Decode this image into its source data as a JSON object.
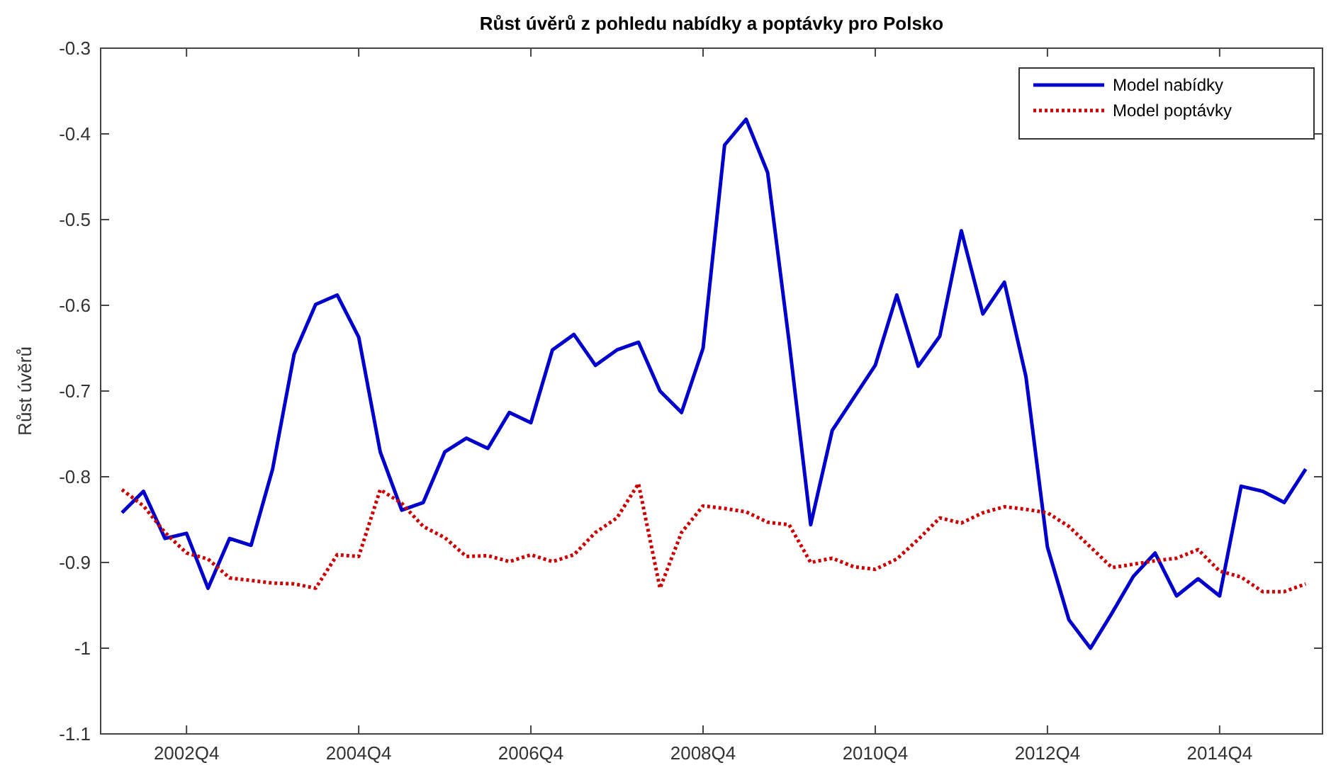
{
  "chart_data": {
    "type": "line",
    "title": "Růst úvěrů z pohledu nabídky a poptávky pro Polsko",
    "ylabel": "Růst úvěrů",
    "categories": [
      null,
      null,
      null,
      "2002Q4",
      null,
      null,
      null,
      null,
      null,
      null,
      null,
      "2004Q4",
      null,
      null,
      null,
      null,
      null,
      null,
      null,
      "2006Q4",
      null,
      null,
      null,
      null,
      null,
      null,
      null,
      "2008Q4",
      null,
      null,
      null,
      null,
      null,
      null,
      null,
      "2010Q4",
      null,
      null,
      null,
      null,
      null,
      null,
      null,
      "2012Q4",
      null,
      null,
      null,
      null,
      null,
      null,
      null,
      "2014Q4",
      null,
      null,
      null,
      null
    ],
    "series": [
      {
        "name": "Model nabídky",
        "color": "#0000cc",
        "line_style": "solid",
        "values": [
          -0.842,
          -0.817,
          -0.872,
          -0.866,
          -0.93,
          -0.872,
          -0.88,
          -0.791,
          -0.657,
          -0.599,
          -0.588,
          -0.637,
          -0.771,
          -0.839,
          -0.83,
          -0.771,
          -0.755,
          -0.767,
          -0.725,
          -0.737,
          -0.652,
          -0.634,
          -0.67,
          -0.652,
          -0.643,
          -0.7,
          -0.725,
          -0.65,
          -0.413,
          -0.383,
          -0.445,
          -0.643,
          -0.856,
          -0.746,
          -0.708,
          -0.67,
          -0.588,
          -0.671,
          -0.636,
          -0.513,
          -0.61,
          -0.573,
          -0.683,
          -0.882,
          -0.967,
          -1.0,
          -0.959,
          -0.916,
          -0.889,
          -0.939,
          -0.919,
          -0.939,
          -0.811,
          -0.817,
          -0.83,
          -0.791
        ]
      },
      {
        "name": "Model poptávky",
        "color": "#cc0000",
        "line_style": "dotted",
        "values": [
          -0.815,
          -0.834,
          -0.865,
          -0.889,
          -0.896,
          -0.918,
          -0.921,
          -0.924,
          -0.925,
          -0.93,
          -0.891,
          -0.893,
          -0.815,
          -0.831,
          -0.858,
          -0.871,
          -0.893,
          -0.892,
          -0.899,
          -0.891,
          -0.899,
          -0.891,
          -0.865,
          -0.848,
          -0.808,
          -0.93,
          -0.865,
          -0.834,
          -0.837,
          -0.841,
          -0.853,
          -0.856,
          -0.9,
          -0.895,
          -0.905,
          -0.908,
          -0.896,
          -0.873,
          -0.848,
          -0.854,
          -0.842,
          -0.835,
          -0.838,
          -0.842,
          -0.858,
          -0.882,
          -0.906,
          -0.902,
          -0.898,
          -0.895,
          -0.885,
          -0.91,
          -0.917,
          -0.934,
          -0.934,
          -0.925
        ]
      }
    ],
    "ylim": [
      -1.1,
      -0.3
    ],
    "yticks": [
      -1.1,
      -1,
      -0.9,
      -0.8,
      -0.7,
      -0.6,
      -0.5,
      -0.4,
      -0.3
    ],
    "legend": "top right",
    "grid": false
  }
}
